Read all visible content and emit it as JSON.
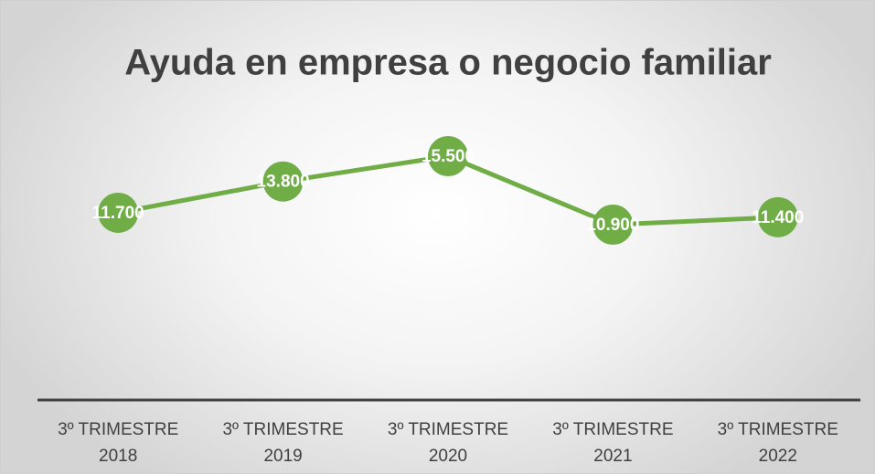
{
  "chart_data": {
    "type": "line",
    "title": "Ayuda en empresa o negocio familiar",
    "categories": [
      "3º TRIMESTRE 2018",
      "3º TRIMESTRE 2019",
      "3º TRIMESTRE 2020",
      "3º TRIMESTRE 2021",
      "3º TRIMESTRE 2022"
    ],
    "series": [
      {
        "name": "Ayuda en empresa o negocio familiar",
        "color": "#70ad47",
        "values": [
          11700,
          13800,
          15500,
          10900,
          11400
        ],
        "value_labels": [
          "11.700",
          "13.800",
          "15.500",
          "10.900",
          "11.400"
        ]
      }
    ]
  }
}
